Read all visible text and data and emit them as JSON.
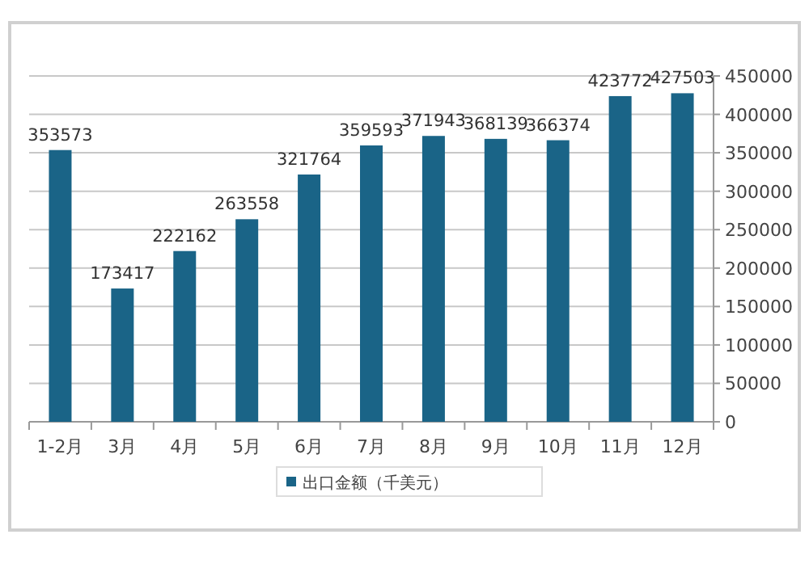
{
  "chart_data": {
    "type": "bar",
    "categories": [
      "1-2月",
      "3月",
      "4月",
      "5月",
      "6月",
      "7月",
      "8月",
      "9月",
      "10月",
      "11月",
      "12月"
    ],
    "series": [
      {
        "name": "出口金额（千美元）",
        "color": "#1a6487",
        "values": [
          353573,
          173417,
          222162,
          263558,
          321764,
          359593,
          371943,
          368139,
          366374,
          423772,
          427503
        ]
      }
    ],
    "ylim": [
      0,
      450000
    ],
    "yticks": [
      0,
      50000,
      100000,
      150000,
      200000,
      250000,
      300000,
      350000,
      400000,
      450000
    ],
    "grid": "y",
    "legend": "bottom",
    "data_labels": true
  }
}
